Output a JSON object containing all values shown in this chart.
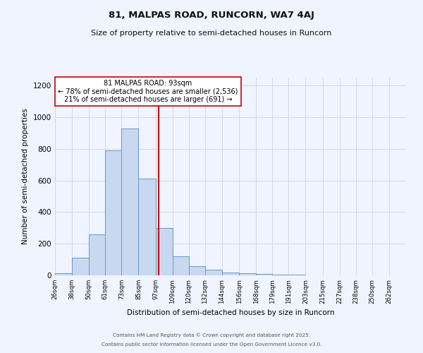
{
  "title1": "81, MALPAS ROAD, RUNCORN, WA7 4AJ",
  "title2": "Size of property relative to semi-detached houses in Runcorn",
  "xlabel": "Distribution of semi-detached houses by size in Runcorn",
  "ylabel": "Number of semi-detached properties",
  "bar_color": "#c8d8f0",
  "bar_edge_color": "#6699cc",
  "bin_labels": [
    "26sqm",
    "38sqm",
    "50sqm",
    "61sqm",
    "73sqm",
    "85sqm",
    "97sqm",
    "109sqm",
    "120sqm",
    "132sqm",
    "144sqm",
    "156sqm",
    "168sqm",
    "179sqm",
    "191sqm",
    "203sqm",
    "215sqm",
    "227sqm",
    "238sqm",
    "250sqm",
    "262sqm"
  ],
  "bin_edges": [
    20,
    32,
    44,
    55.5,
    67,
    79,
    91,
    103,
    114.5,
    126,
    138,
    150,
    162,
    173.5,
    185,
    197,
    209,
    221,
    232.5,
    244,
    256,
    268
  ],
  "bar_heights": [
    15,
    110,
    260,
    790,
    930,
    610,
    300,
    120,
    60,
    35,
    20,
    15,
    8,
    4,
    3,
    2,
    2,
    1,
    1,
    0.5,
    0.5
  ],
  "vline_x": 93,
  "vline_color": "#cc0000",
  "annotation_title": "81 MALPAS ROAD: 93sqm",
  "annotation_line1": "← 78% of semi-detached houses are smaller (2,536)",
  "annotation_line2": "21% of semi-detached houses are larger (691) →",
  "annotation_box_color": "#ffffff",
  "annotation_box_edge": "#cc0000",
  "ylim": [
    0,
    1250
  ],
  "yticks": [
    0,
    200,
    400,
    600,
    800,
    1000,
    1200
  ],
  "footer1": "Contains HM Land Registry data © Crown copyright and database right 2025.",
  "footer2": "Contains public sector information licensed under the Open Government Licence v3.0.",
  "bg_color": "#f0f4ff",
  "grid_color": "#d0d8e8"
}
